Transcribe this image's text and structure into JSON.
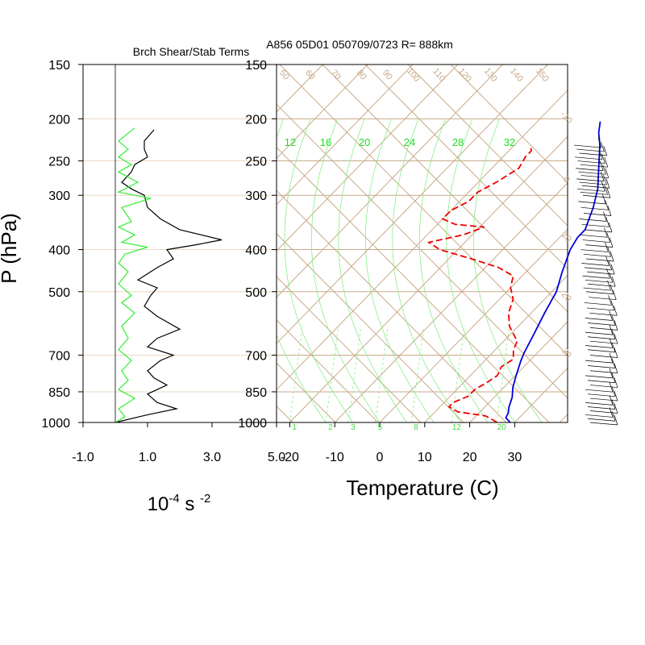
{
  "figure": {
    "left_title": "Brch Shear/Stab Terms",
    "right_title": "A856 05D01 050709/0723 R= 888km"
  },
  "chart_data": [
    {
      "type": "line",
      "panel": "shear-stability",
      "ylabel": "P (hPa)",
      "ylim": [
        1000,
        150
      ],
      "yscale": "log",
      "yticks": [
        150,
        200,
        250,
        300,
        400,
        500,
        700,
        850,
        1000
      ],
      "xlim": [
        -1.0,
        5.0
      ],
      "xticks": [
        -1.0,
        1.0,
        3.0,
        5.0
      ],
      "xtick_labels": [
        "-1.0",
        "1.0",
        "3.0",
        "5.0"
      ],
      "xlabel_base": "10",
      "xlabel_exp1": "-4",
      "xlabel_mid": " s ",
      "xlabel_exp2": "-2",
      "grid": "horizontal lines at pressure ticks",
      "series": [
        {
          "color": "#000000",
          "points": [
            [
              1.2,
              212
            ],
            [
              0.9,
              225
            ],
            [
              0.9,
              235
            ],
            [
              1.0,
              245
            ],
            [
              0.6,
              255
            ],
            [
              0.5,
              265
            ],
            [
              0.2,
              280
            ],
            [
              0.5,
              290
            ],
            [
              0.9,
              300
            ],
            [
              1.0,
              320
            ],
            [
              1.4,
              340
            ],
            [
              2.0,
              360
            ],
            [
              3.3,
              380
            ],
            [
              2.5,
              390
            ],
            [
              1.6,
              400
            ],
            [
              1.8,
              420
            ],
            [
              1.3,
              440
            ],
            [
              0.7,
              470
            ],
            [
              1.3,
              490
            ],
            [
              1.1,
              510
            ],
            [
              0.9,
              540
            ],
            [
              1.3,
              570
            ],
            [
              2.0,
              610
            ],
            [
              1.3,
              640
            ],
            [
              1.0,
              670
            ],
            [
              1.8,
              700
            ],
            [
              1.4,
              720
            ],
            [
              1.0,
              760
            ],
            [
              1.2,
              790
            ],
            [
              1.6,
              820
            ],
            [
              1.0,
              860
            ],
            [
              1.3,
              900
            ],
            [
              1.9,
              930
            ],
            [
              1.0,
              960
            ],
            [
              0.0,
              1000
            ]
          ]
        },
        {
          "color": "#33ee33",
          "points": [
            [
              0.6,
              210
            ],
            [
              0.1,
              225
            ],
            [
              0.4,
              235
            ],
            [
              0.1,
              245
            ],
            [
              0.5,
              255
            ],
            [
              0.1,
              265
            ],
            [
              0.7,
              280
            ],
            [
              0.1,
              295
            ],
            [
              1.1,
              305
            ],
            [
              0.2,
              320
            ],
            [
              0.5,
              345
            ],
            [
              0.1,
              355
            ],
            [
              0.6,
              370
            ],
            [
              0.2,
              385
            ],
            [
              1.0,
              395
            ],
            [
              0.3,
              410
            ],
            [
              0.1,
              430
            ],
            [
              0.4,
              450
            ],
            [
              0.1,
              480
            ],
            [
              0.5,
              510
            ],
            [
              0.2,
              530
            ],
            [
              0.6,
              560
            ],
            [
              0.2,
              600
            ],
            [
              0.4,
              640
            ],
            [
              0.1,
              680
            ],
            [
              0.5,
              720
            ],
            [
              0.2,
              760
            ],
            [
              0.4,
              800
            ],
            [
              0.1,
              840
            ],
            [
              0.6,
              880
            ],
            [
              0.1,
              930
            ],
            [
              0.3,
              970
            ],
            [
              0.0,
              1000
            ]
          ]
        }
      ]
    },
    {
      "type": "line",
      "panel": "skew-t",
      "xlabel": "Temperature (C)",
      "xlim": [
        -23,
        42
      ],
      "xticks": [
        -20,
        -10,
        0,
        10,
        20,
        30
      ],
      "ylim": [
        1000,
        150
      ],
      "yscale": "log",
      "yticks": [
        150,
        200,
        250,
        300,
        400,
        500,
        700,
        850,
        1000
      ],
      "isotherm_spacing_c": 10,
      "mixing_ratio_labels": [
        "1",
        "2",
        "3",
        "5",
        "8",
        "12",
        "20"
      ],
      "moist_adiabat_labels": [
        "12",
        "16",
        "20",
        "24",
        "28",
        "32"
      ],
      "dry_adiabat_top_labels": [
        "50",
        "60",
        "70",
        "80",
        "90",
        "100",
        "110",
        "120",
        "130",
        "140",
        "150"
      ],
      "right_axis_labels": [
        "-10",
        "0",
        "10",
        "20",
        "30"
      ],
      "series": [
        {
          "role": "temperature",
          "color": "#0000dd",
          "points": [
            [
              29,
              1000
            ],
            [
              27,
              975
            ],
            [
              26.5,
              950
            ],
            [
              25.5,
              925
            ],
            [
              24,
              875
            ],
            [
              22,
              830
            ],
            [
              20,
              775
            ],
            [
              18,
              720
            ],
            [
              17,
              690
            ],
            [
              15,
              620
            ],
            [
              13,
              560
            ],
            [
              11,
              500
            ],
            [
              8,
              450
            ],
            [
              5,
              400
            ],
            [
              4,
              375
            ],
            [
              4,
              360
            ],
            [
              1,
              320
            ],
            [
              -2,
              290
            ],
            [
              -7,
              255
            ],
            [
              -11,
              230
            ],
            [
              -14,
              215
            ],
            [
              -16,
              203
            ]
          ]
        },
        {
          "role": "dewpoint",
          "color": "#ee0000",
          "dashed": true,
          "points": [
            [
              26,
              1000
            ],
            [
              25,
              990
            ],
            [
              22,
              965
            ],
            [
              15,
              945
            ],
            [
              12,
              920
            ],
            [
              12,
              900
            ],
            [
              14,
              870
            ],
            [
              14,
              840
            ],
            [
              15,
              815
            ],
            [
              16,
              780
            ],
            [
              15,
              745
            ],
            [
              16,
              715
            ],
            [
              14,
              680
            ],
            [
              13,
              650
            ],
            [
              8,
              600
            ],
            [
              5,
              560
            ],
            [
              3,
              520
            ],
            [
              0,
              490
            ],
            [
              -2,
              460
            ],
            [
              -7,
              440
            ],
            [
              -15,
              420
            ],
            [
              -24,
              400
            ],
            [
              -28,
              385
            ],
            [
              -22,
              370
            ],
            [
              -19,
              355
            ],
            [
              -26,
              350
            ],
            [
              -30,
              340
            ],
            [
              -30,
              325
            ],
            [
              -28,
              310
            ],
            [
              -28,
              295
            ],
            [
              -26,
              280
            ],
            [
              -24,
              260
            ],
            [
              -25,
              245
            ],
            [
              -25,
              237
            ],
            [
              -26,
              232
            ]
          ]
        }
      ]
    },
    {
      "type": "barbs",
      "panel": "wind",
      "levels_hpa": [
        230,
        235,
        240,
        245,
        250,
        255,
        260,
        265,
        270,
        275,
        280,
        285,
        290,
        295,
        300,
        310,
        320,
        330,
        340,
        350,
        360,
        370,
        380,
        390,
        400,
        410,
        420,
        430,
        440,
        450,
        460,
        470,
        480,
        490,
        500,
        515,
        530,
        545,
        560,
        575,
        590,
        605,
        620,
        635,
        650,
        665,
        680,
        700,
        720,
        740,
        760,
        780,
        800,
        820,
        840,
        860,
        880,
        900,
        920,
        940,
        960,
        980,
        1000
      ]
    }
  ]
}
